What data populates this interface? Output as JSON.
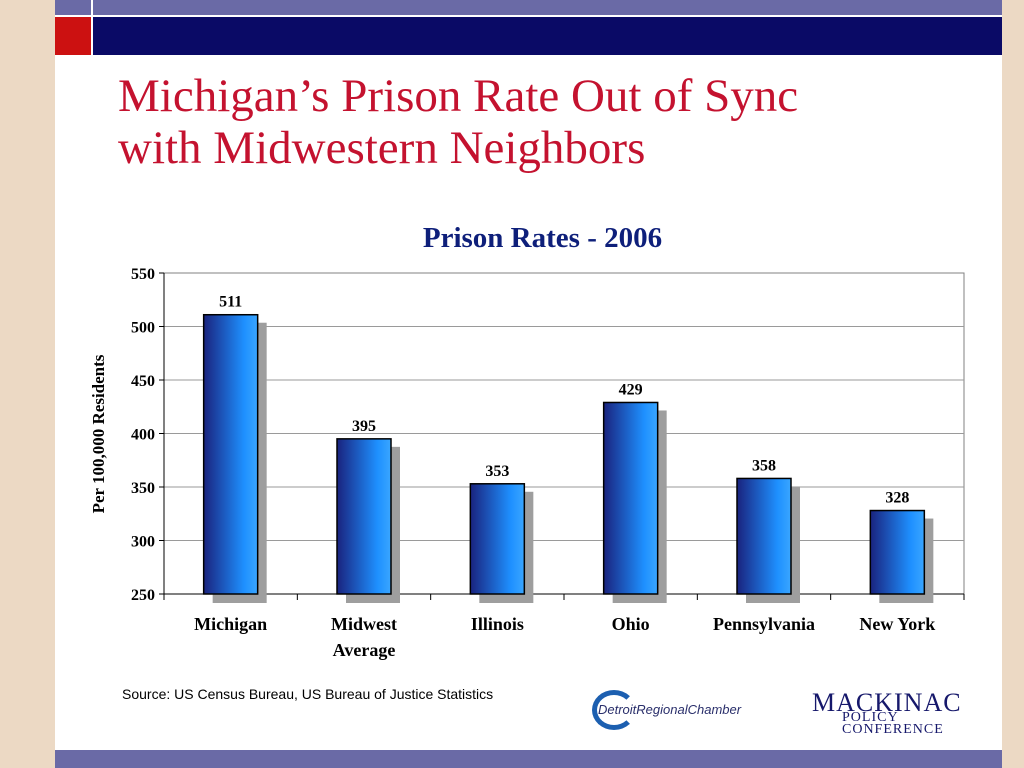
{
  "slide": {
    "title_line1": "Michigan’s Prison Rate Out of Sync",
    "title_line2": "with Midwestern Neighbors",
    "source": "Source:  US Census Bureau, US Bureau of Justice Statistics"
  },
  "logos": {
    "detroit_regional_chamber": "DetroitRegionalChamber",
    "mackinac_line1": "MACKINAC",
    "mackinac_line2": "POLICY",
    "mackinac_line3": "CONFERENCE"
  },
  "colors": {
    "title": "#c4122f",
    "chart_title": "#0e1f7a",
    "bar_light": "#1e90ff",
    "bar_dark": "#1a237e",
    "shadow": "#9e9e9e",
    "frame_navy": "#0a0a66",
    "frame_red": "#cc1111",
    "frame_band": "#6a6aa6"
  },
  "chart_data": {
    "type": "bar",
    "title": "Prison Rates - 2006",
    "xlabel": "",
    "ylabel": "Per 100,000 Residents",
    "categories": [
      "Michigan",
      "Midwest Average",
      "Illinois",
      "Ohio",
      "Pennsylvania",
      "New York"
    ],
    "category_lines": [
      [
        "Michigan"
      ],
      [
        "Midwest",
        "Average"
      ],
      [
        "Illinois"
      ],
      [
        "Ohio"
      ],
      [
        "Pennsylvania"
      ],
      [
        "New York"
      ]
    ],
    "values": [
      511,
      395,
      353,
      429,
      358,
      328
    ],
    "data_labels": [
      "511",
      "395",
      "353",
      "429",
      "358",
      "328"
    ],
    "ylim": [
      250,
      550
    ],
    "yticks": [
      250,
      300,
      350,
      400,
      450,
      500,
      550
    ],
    "grid": true,
    "legend": "none"
  }
}
